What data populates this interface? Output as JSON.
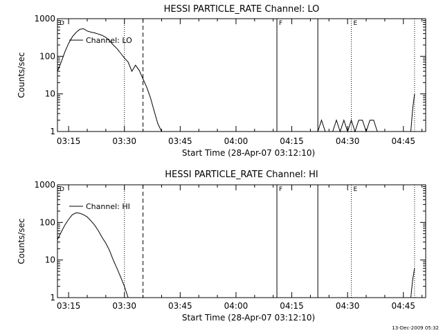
{
  "footer": {
    "timestamp": "13-Dec-2009 05:32"
  },
  "chart_data": [
    {
      "type": "line",
      "title": "HESSI PARTICLE_RATE Channel: LO",
      "xlabel": "Start Time (28-Apr-07 03:12:10)",
      "ylabel": "Counts/sec",
      "yscale": "log",
      "ylim": [
        1,
        1000
      ],
      "xlim": [
        "03:12",
        "04:51"
      ],
      "x_ticks": [
        "03:15",
        "03:30",
        "03:45",
        "04:00",
        "04:15",
        "04:30",
        "04:45"
      ],
      "y_ticks": [
        "1",
        "10",
        "100",
        "1000"
      ],
      "grid": false,
      "legend": {
        "position": "top-left",
        "entries": [
          "Channel: LO"
        ]
      },
      "markers": [
        {
          "label": "D",
          "time": "03:12",
          "style": "none"
        },
        {
          "label": "",
          "time": "03:30",
          "style": "dotted"
        },
        {
          "label": "",
          "time": "03:35",
          "style": "dashed"
        },
        {
          "label": "F",
          "time": "04:11",
          "style": "solid"
        },
        {
          "label": "",
          "time": "04:22",
          "style": "solid"
        },
        {
          "label": "E",
          "time": "04:31",
          "style": "dotted"
        },
        {
          "label": "",
          "time": "04:48",
          "style": "dotted"
        }
      ],
      "series": [
        {
          "name": "Channel: LO",
          "segments": [
            [
              [
                "03:12",
                40
              ],
              [
                "03:13",
                70
              ],
              [
                "03:14",
                130
              ],
              [
                "03:15",
                220
              ],
              [
                "03:16",
                330
              ],
              [
                "03:17",
                430
              ],
              [
                "03:18",
                520
              ],
              [
                "03:19",
                540
              ],
              [
                "03:20",
                470
              ],
              [
                "03:21",
                440
              ],
              [
                "03:22",
                420
              ],
              [
                "03:23",
                390
              ],
              [
                "03:24",
                360
              ],
              [
                "03:25",
                320
              ],
              [
                "03:26",
                260
              ],
              [
                "03:27",
                200
              ],
              [
                "03:28",
                160
              ],
              [
                "03:29",
                120
              ],
              [
                "03:30",
                90
              ],
              [
                "03:31",
                70
              ],
              [
                "03:32",
                40
              ],
              [
                "03:33",
                58
              ],
              [
                "03:34",
                42
              ],
              [
                "03:35",
                25
              ],
              [
                "03:36",
                15
              ],
              [
                "03:37",
                8
              ],
              [
                "03:38",
                3.5
              ],
              [
                "03:39",
                1.6
              ],
              [
                "03:40",
                1
              ]
            ],
            [
              [
                "04:22",
                1
              ],
              [
                "04:23",
                2
              ],
              [
                "04:24",
                1
              ],
              [
                "04:26",
                1
              ],
              [
                "04:27",
                2
              ],
              [
                "04:28",
                1
              ],
              [
                "04:29",
                2
              ],
              [
                "04:30",
                1
              ],
              [
                "04:31",
                2
              ],
              [
                "04:32",
                1
              ],
              [
                "04:33",
                2
              ],
              [
                "04:34",
                2
              ],
              [
                "04:35",
                1
              ],
              [
                "04:36",
                2
              ],
              [
                "04:37",
                2
              ],
              [
                "04:38",
                1
              ]
            ],
            [
              [
                "04:47",
                1
              ],
              [
                "04:47.5",
                4
              ],
              [
                "04:48",
                10
              ]
            ]
          ]
        }
      ]
    },
    {
      "type": "line",
      "title": "HESSI PARTICLE_RATE Channel: HI",
      "xlabel": "Start Time (28-Apr-07 03:12:10)",
      "ylabel": "Counts/sec",
      "yscale": "log",
      "ylim": [
        1,
        1000
      ],
      "xlim": [
        "03:12",
        "04:51"
      ],
      "x_ticks": [
        "03:15",
        "03:30",
        "03:45",
        "04:00",
        "04:15",
        "04:30",
        "04:45"
      ],
      "y_ticks": [
        "1",
        "10",
        "100",
        "1000"
      ],
      "grid": false,
      "legend": {
        "position": "top-left",
        "entries": [
          "Channel: HI"
        ]
      },
      "markers": [
        {
          "label": "D",
          "time": "03:12",
          "style": "none"
        },
        {
          "label": "",
          "time": "03:30",
          "style": "dotted"
        },
        {
          "label": "",
          "time": "03:35",
          "style": "dashed"
        },
        {
          "label": "F",
          "time": "04:11",
          "style": "solid"
        },
        {
          "label": "",
          "time": "04:22",
          "style": "solid"
        },
        {
          "label": "E",
          "time": "04:31",
          "style": "dotted"
        },
        {
          "label": "",
          "time": "04:48",
          "style": "dotted"
        }
      ],
      "series": [
        {
          "name": "Channel: HI",
          "segments": [
            [
              [
                "03:12",
                35
              ],
              [
                "03:13",
                55
              ],
              [
                "03:14",
                85
              ],
              [
                "03:15",
                120
              ],
              [
                "03:16",
                160
              ],
              [
                "03:17",
                180
              ],
              [
                "03:18",
                175
              ],
              [
                "03:19",
                160
              ],
              [
                "03:20",
                140
              ],
              [
                "03:21",
                110
              ],
              [
                "03:22",
                85
              ],
              [
                "03:23",
                60
              ],
              [
                "03:24",
                40
              ],
              [
                "03:25",
                28
              ],
              [
                "03:26",
                18
              ],
              [
                "03:27",
                10
              ],
              [
                "03:28",
                6
              ],
              [
                "03:29",
                3.5
              ],
              [
                "03:30",
                2
              ],
              [
                "03:31",
                1
              ]
            ],
            [
              [
                "04:47",
                1
              ],
              [
                "04:47.5",
                3
              ],
              [
                "04:48",
                6
              ]
            ]
          ]
        }
      ]
    }
  ]
}
